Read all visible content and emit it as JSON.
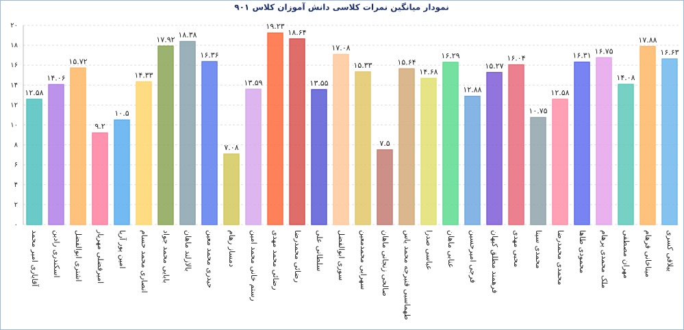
{
  "chart_data": {
    "type": "bar",
    "title": "نمودار میانگین نمرات کلاسی دانش آموزان کلاس ۹۰۱",
    "categories": [
      "آقایاری امیر محمد",
      "اسکندری رادین",
      "اشتری ابوالفضل",
      "امیرفضلی مهریار",
      "امین پور آریا",
      "انصاری محمد حسام",
      "بابایی محمد جواد",
      "بالازلند ماهان",
      "حیدری محمد معین",
      "دمساز رهام",
      "رستم خانی محمد امین",
      "رضائی محمد مهدی",
      "رضائی محمدرضا",
      "سلطانی علی",
      "سوری ابوالفضل",
      "سهرابی محمدمعین",
      "صالحی زنجانی ماهان",
      "طهماسبی قنبرجه محمد یاس",
      "عباسی صدرا",
      "عنابی ماهان",
      "فرجی امیرحسین",
      "فرهمند مطلق کیهان",
      "محبی مهدی",
      "محمدی سینا",
      "محمدی محمدرضا",
      "محمودی طاها",
      "ملک محمدی پرهام",
      "مهران مصطفی",
      "میناخانی فرهام",
      "ییلاقی کسری"
    ],
    "values": [
      12.58,
      14.06,
      15.72,
      9.2,
      10.5,
      14.33,
      17.92,
      18.38,
      16.36,
      7.08,
      13.59,
      19.23,
      18.64,
      13.55,
      17.08,
      15.33,
      7.5,
      15.64,
      14.68,
      16.29,
      12.88,
      15.27,
      16.04,
      10.75,
      12.58,
      16.31,
      16.75,
      14.08,
      17.88,
      16.63
    ],
    "value_labels": [
      "۱۲.۵۸",
      "۱۴.۰۶",
      "۱۵.۷۲",
      "۹.۲",
      "۱۰.۵",
      "۱۴.۳۳",
      "۱۷.۹۲",
      "۱۸.۳۸",
      "۱۶.۳۶",
      "۷.۰۸",
      "۱۳.۵۹",
      "۱۹.۲۳",
      "۱۸.۶۴",
      "۱۳.۵۵",
      "۱۷.۰۸",
      "۱۵.۳۳",
      "۷.۵",
      "۱۵.۶۴",
      "۱۴.۶۸",
      "۱۶.۲۹",
      "۱۲.۸۸",
      "۱۵.۲۷",
      "۱۶.۰۴",
      "۱۰.۷۵",
      "۱۲.۵۸",
      "۱۶.۳۱",
      "۱۶.۷۵",
      "۱۴.۰۸",
      "۱۷.۸۸",
      "۱۶.۶۳"
    ],
    "colors": [
      "#4fc1bd",
      "#b07fe8",
      "#ffb766",
      "#ff7fa0",
      "#5aaef0",
      "#ffd66b",
      "#8aa655",
      "#8aa3ad",
      "#5c7ef0",
      "#d2c95a",
      "#d7a8ec",
      "#ff6b3d",
      "#d9534f",
      "#5b5bd6",
      "#ffc89a",
      "#e2c86a",
      "#c47c73",
      "#d4aa78",
      "#e0e070",
      "#5cdc90",
      "#6fa8e0",
      "#7e5cd6",
      "#e86a7a",
      "#8fa4aa",
      "#ff8fa8",
      "#5f6ef0",
      "#e6a3ec",
      "#5cc9b8",
      "#ffb766",
      "#6fb8ec"
    ],
    "ylim": [
      0,
      20
    ],
    "yticks": [
      {
        "value": 0,
        "label": "۰"
      },
      {
        "value": 2,
        "label": "۲"
      },
      {
        "value": 4,
        "label": "۴"
      },
      {
        "value": 6,
        "label": "۶"
      },
      {
        "value": 8,
        "label": "۸"
      },
      {
        "value": 10,
        "label": "۱۰"
      },
      {
        "value": 12,
        "label": "۱۲"
      },
      {
        "value": 14,
        "label": "۱۴"
      },
      {
        "value": 16,
        "label": "۱۶"
      },
      {
        "value": 18,
        "label": "۱۸"
      },
      {
        "value": 20,
        "label": "۲۰"
      }
    ],
    "grid": true
  }
}
